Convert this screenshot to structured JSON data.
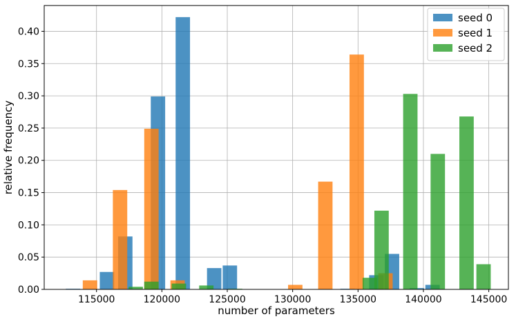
{
  "chart_data": {
    "type": "bar",
    "xlabel": "number of parameters",
    "ylabel": "relative frequency",
    "xlim": [
      111000,
      146500
    ],
    "ylim": [
      0,
      0.44
    ],
    "xticks": [
      115000,
      120000,
      125000,
      130000,
      135000,
      140000,
      145000
    ],
    "xtick_labels": [
      "115000",
      "120000",
      "125000",
      "130000",
      "135000",
      "140000",
      "145000"
    ],
    "yticks": [
      0.0,
      0.05,
      0.1,
      0.15,
      0.2,
      0.25,
      0.3,
      0.35,
      0.4
    ],
    "ytick_labels": [
      "0.00",
      "0.05",
      "0.10",
      "0.15",
      "0.20",
      "0.25",
      "0.30",
      "0.35",
      "0.40"
    ],
    "grid": true,
    "legend_position": "top-right",
    "bar_width": 1100,
    "series": [
      {
        "name": "seed 0",
        "color": "#1f77b4",
        "bars": [
          {
            "x": 113200,
            "y": 0.001
          },
          {
            "x": 115800,
            "y": 0.027
          },
          {
            "x": 117200,
            "y": 0.082
          },
          {
            "x": 119700,
            "y": 0.299
          },
          {
            "x": 121600,
            "y": 0.422
          },
          {
            "x": 124000,
            "y": 0.033
          },
          {
            "x": 125200,
            "y": 0.037
          },
          {
            "x": 134200,
            "y": 0.001
          },
          {
            "x": 136400,
            "y": 0.022
          },
          {
            "x": 137600,
            "y": 0.055
          },
          {
            "x": 139500,
            "y": 0.002
          },
          {
            "x": 140700,
            "y": 0.007
          }
        ]
      },
      {
        "name": "seed 1",
        "color": "#ff7f0e",
        "bars": [
          {
            "x": 114500,
            "y": 0.014
          },
          {
            "x": 116800,
            "y": 0.154
          },
          {
            "x": 119200,
            "y": 0.249
          },
          {
            "x": 121200,
            "y": 0.014
          },
          {
            "x": 130200,
            "y": 0.007
          },
          {
            "x": 132500,
            "y": 0.167
          },
          {
            "x": 134900,
            "y": 0.364
          },
          {
            "x": 137100,
            "y": 0.025
          }
        ]
      },
      {
        "name": "seed 2",
        "color": "#2ca02c",
        "bars": [
          {
            "x": 118000,
            "y": 0.004
          },
          {
            "x": 119200,
            "y": 0.012
          },
          {
            "x": 121300,
            "y": 0.009
          },
          {
            "x": 123400,
            "y": 0.006
          },
          {
            "x": 125600,
            "y": 0.001
          },
          {
            "x": 135900,
            "y": 0.018
          },
          {
            "x": 136800,
            "y": 0.122
          },
          {
            "x": 139000,
            "y": 0.303
          },
          {
            "x": 141100,
            "y": 0.21
          },
          {
            "x": 143300,
            "y": 0.268
          },
          {
            "x": 144600,
            "y": 0.039
          }
        ]
      }
    ]
  }
}
